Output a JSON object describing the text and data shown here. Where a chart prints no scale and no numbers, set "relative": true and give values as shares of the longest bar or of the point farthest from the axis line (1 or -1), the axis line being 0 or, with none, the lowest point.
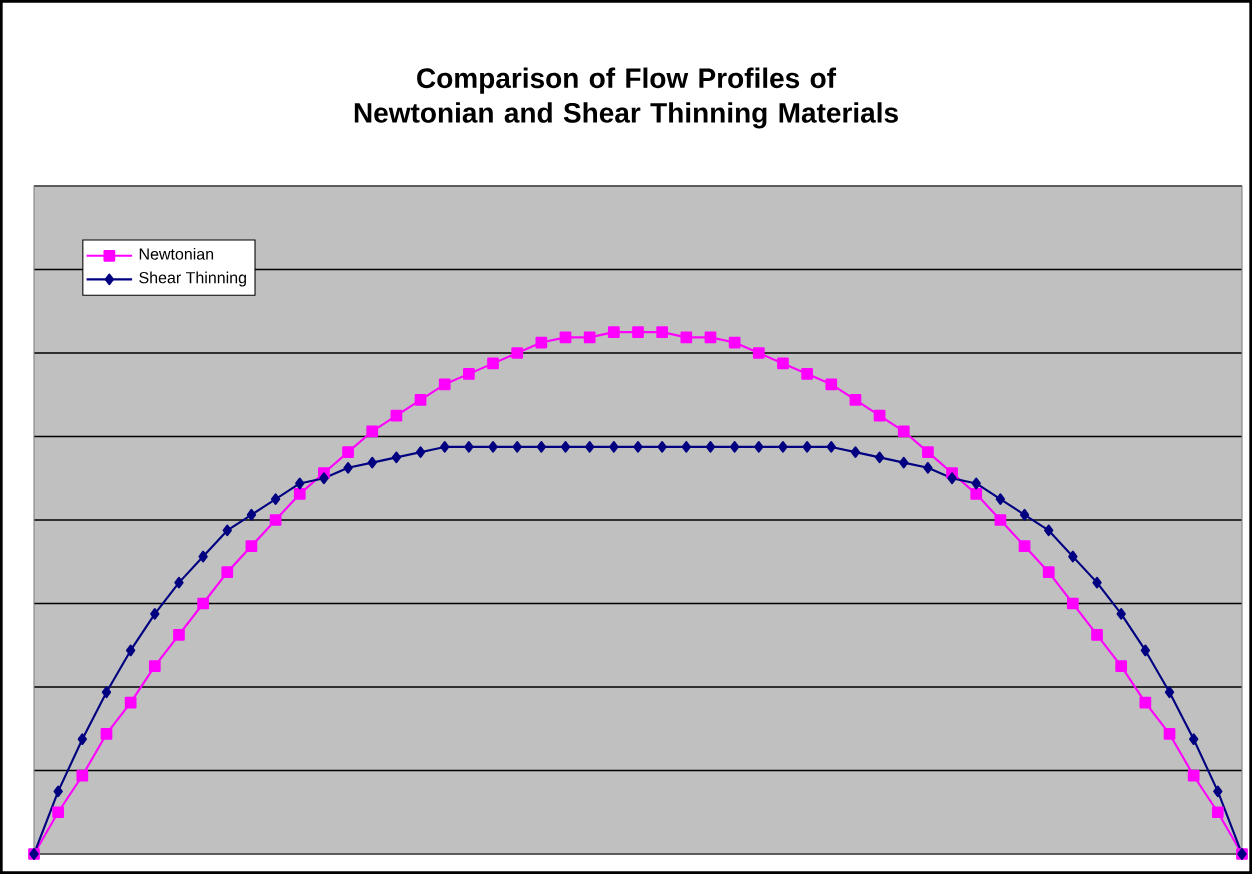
{
  "chart_data": {
    "type": "line",
    "title": "Comparison of Flow Profiles of Newtonian and Shear Thinning Materials",
    "categories": [
      null,
      null,
      null,
      null,
      null,
      null,
      null,
      null,
      null,
      null,
      null,
      null,
      null,
      null,
      null,
      null,
      null,
      null,
      null,
      null,
      null,
      null,
      null,
      null,
      null,
      null,
      null,
      null,
      null,
      null,
      null,
      null,
      null,
      null,
      null,
      null,
      null,
      null,
      null,
      null,
      null,
      null,
      null,
      null,
      null,
      null,
      null,
      null,
      null,
      null,
      null
    ],
    "relative": true,
    "grid": "y",
    "legend": "top left",
    "line_style": "solid",
    "series": [
      {
        "name": "Newtonian",
        "color": "#ff00ff",
        "marker": "square",
        "values": [
          0,
          0.08,
          0.15,
          0.23,
          0.29,
          0.36,
          0.42,
          0.48,
          0.54,
          0.59,
          0.64,
          0.69,
          0.73,
          0.77,
          0.81,
          0.84,
          0.87,
          0.9,
          0.92,
          0.94,
          0.96,
          0.98,
          0.99,
          0.99,
          1,
          1,
          1,
          0.99,
          0.99,
          0.98,
          0.96,
          0.94,
          0.92,
          0.9,
          0.87,
          0.84,
          0.81,
          0.77,
          0.73,
          0.69,
          0.64,
          0.59,
          0.54,
          0.48,
          0.42,
          0.36,
          0.29,
          0.23,
          0.15,
          0.08,
          0
        ]
      },
      {
        "name": "Shear Thinning",
        "color": "#000080",
        "marker": "diamond",
        "values": [
          0,
          0.12,
          0.22,
          0.31,
          0.39,
          0.46,
          0.52,
          0.57,
          0.62,
          0.65,
          0.68,
          0.71,
          0.72,
          0.74,
          0.75,
          0.76,
          0.77,
          0.78,
          0.78,
          0.78,
          0.78,
          0.78,
          0.78,
          0.78,
          0.78,
          0.78,
          0.78,
          0.78,
          0.78,
          0.78,
          0.78,
          0.78,
          0.78,
          0.78,
          0.77,
          0.76,
          0.75,
          0.74,
          0.72,
          0.71,
          0.68,
          0.65,
          0.62,
          0.57,
          0.52,
          0.46,
          0.39,
          0.31,
          0.22,
          0.12,
          0
        ]
      }
    ]
  }
}
